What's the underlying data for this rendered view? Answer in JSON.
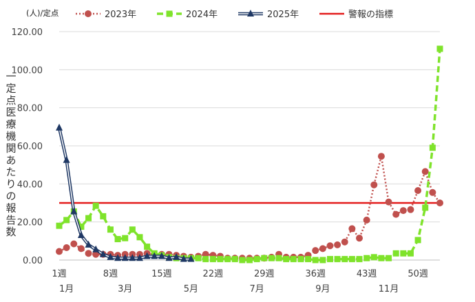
{
  "chart_data": {
    "type": "line",
    "unit_label": "(人)/定点",
    "ylabel_chars": [
      "一",
      "定",
      "点",
      "医",
      "療",
      "機",
      "関",
      "あ",
      "た",
      "り",
      "の",
      "報",
      "告",
      "数"
    ],
    "ylim": [
      0,
      120
    ],
    "yticks": [
      "0.00",
      "20.00",
      "40.00",
      "60.00",
      "80.00",
      "100.00",
      "120.00"
    ],
    "yticks_values": [
      0,
      20,
      40,
      60,
      80,
      100,
      120
    ],
    "x_range": [
      1,
      53
    ],
    "xticks_week": [
      {
        "x": 1,
        "label": "1週"
      },
      {
        "x": 8,
        "label": "8週"
      },
      {
        "x": 15,
        "label": "15週"
      },
      {
        "x": 22,
        "label": "22週"
      },
      {
        "x": 29,
        "label": "29週"
      },
      {
        "x": 36,
        "label": "36週"
      },
      {
        "x": 43,
        "label": "43週"
      },
      {
        "x": 50,
        "label": "50週"
      }
    ],
    "xticks_month": [
      {
        "x": 2,
        "label": "1月"
      },
      {
        "x": 10,
        "label": "3月"
      },
      {
        "x": 19,
        "label": "5月"
      },
      {
        "x": 28,
        "label": "7月"
      },
      {
        "x": 37,
        "label": "9月"
      },
      {
        "x": 46,
        "label": "11月"
      }
    ],
    "series": [
      {
        "name": "2023年",
        "color": "#C0504D",
        "style": "dotted",
        "marker": "circle",
        "x": [
          1,
          2,
          3,
          4,
          5,
          6,
          7,
          8,
          9,
          10,
          11,
          12,
          13,
          14,
          15,
          16,
          17,
          18,
          19,
          20,
          21,
          22,
          23,
          24,
          25,
          26,
          27,
          28,
          29,
          30,
          31,
          32,
          33,
          34,
          35,
          36,
          37,
          38,
          39,
          40,
          41,
          42,
          43,
          44,
          45,
          46,
          47,
          48,
          49,
          50,
          51,
          52,
          53
        ],
        "values": [
          4.5,
          6.5,
          8.5,
          6.0,
          3.5,
          3.0,
          3.0,
          3.0,
          2.5,
          3.0,
          3.0,
          3.0,
          3.5,
          3.0,
          3.0,
          3.0,
          2.5,
          2.0,
          1.5,
          2.0,
          3.0,
          2.5,
          2.0,
          1.0,
          1.0,
          1.0,
          1.0,
          1.0,
          1.0,
          1.5,
          3.0,
          1.5,
          1.5,
          1.5,
          2.5,
          5.0,
          6.0,
          7.5,
          8.0,
          9.5,
          16.5,
          11.5,
          21.0,
          39.5,
          54.5,
          30.5,
          24.0,
          26.0,
          26.5,
          36.5,
          46.5,
          35.5,
          30.0
        ]
      },
      {
        "name": "2024年",
        "color": "#7FE32B",
        "style": "dashed",
        "marker": "square",
        "x": [
          1,
          2,
          3,
          4,
          5,
          6,
          7,
          8,
          9,
          10,
          11,
          12,
          13,
          14,
          15,
          16,
          17,
          18,
          19,
          20,
          21,
          22,
          23,
          24,
          25,
          26,
          27,
          28,
          29,
          30,
          31,
          32,
          33,
          34,
          35,
          36,
          37,
          38,
          39,
          40,
          41,
          42,
          43,
          44,
          45,
          46,
          47,
          48,
          49,
          50,
          51,
          52,
          53
        ],
        "values": [
          18.0,
          21.0,
          25.5,
          17.5,
          22.0,
          28.5,
          23.0,
          16.0,
          11.0,
          11.5,
          16.0,
          12.0,
          7.0,
          3.5,
          2.5,
          1.5,
          1.0,
          1.0,
          1.0,
          1.0,
          0.5,
          0.5,
          0.5,
          0.5,
          0.5,
          0.0,
          0.0,
          0.5,
          1.0,
          1.0,
          1.0,
          0.5,
          0.5,
          0.5,
          0.5,
          0.0,
          0.0,
          0.5,
          0.5,
          0.5,
          0.5,
          0.5,
          1.0,
          1.5,
          1.0,
          1.0,
          3.5,
          3.5,
          3.5,
          10.5,
          27.5,
          59.0,
          111.0
        ]
      },
      {
        "name": "2025年",
        "color": "#1F3864",
        "style": "double",
        "marker": "triangle",
        "x": [
          1,
          2,
          3,
          4,
          5,
          6,
          7,
          8,
          9,
          10,
          11,
          12,
          13,
          14,
          15,
          16,
          17,
          18,
          19
        ],
        "values": [
          69.5,
          52.5,
          25.5,
          13.0,
          8.0,
          5.5,
          3.0,
          1.5,
          1.0,
          1.0,
          1.0,
          1.0,
          2.0,
          2.0,
          2.0,
          1.0,
          1.5,
          0.5,
          0.5
        ]
      },
      {
        "name": "警報の指標",
        "color": "#E31B1B",
        "style": "solid",
        "marker": "none",
        "x": [
          1,
          53
        ],
        "values": [
          30,
          30
        ]
      }
    ]
  }
}
